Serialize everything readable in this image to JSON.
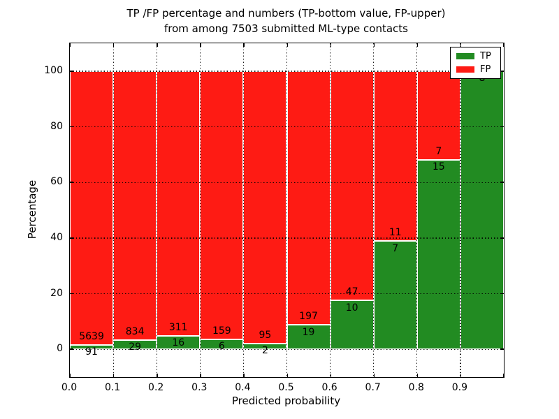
{
  "chart_data": {
    "type": "bar",
    "stacked": true,
    "normalized": "each bin scaled to 100 percent",
    "title_lines": [
      "TP /FP percentage and numbers (TP-bottom value, FP-upper)",
      "from among 7503 submitted ML-type contacts"
    ],
    "xlabel": "Predicted probability",
    "ylabel": "Percentage",
    "total_contacts": 7503,
    "x_tick_labels": [
      "0.0",
      "0.1",
      "0.2",
      "0.3",
      "0.4",
      "0.5",
      "0.6",
      "0.7",
      "0.8",
      "0.9"
    ],
    "bin_edges": [
      0.0,
      0.1,
      0.2,
      0.3,
      0.4,
      0.5,
      0.6,
      0.7,
      0.8,
      0.9,
      1.0
    ],
    "y_ticks": [
      0,
      20,
      40,
      60,
      80,
      100
    ],
    "y_tick_labels": [
      "0",
      "20",
      "40",
      "60",
      "80",
      "100"
    ],
    "ylim": [
      -10,
      110
    ],
    "xlim": [
      0.0,
      1.0
    ],
    "grid": true,
    "grid_style": "dotted",
    "series": [
      {
        "name": "TP",
        "position": "bottom",
        "color": "#228b22",
        "counts": [
          91,
          29,
          16,
          6,
          2,
          19,
          10,
          7,
          15,
          8
        ]
      },
      {
        "name": "FP",
        "position": "top",
        "color": "#fe1b14",
        "counts": [
          5639,
          834,
          311,
          159,
          95,
          197,
          47,
          11,
          7,
          0
        ]
      }
    ],
    "tp_percent_per_bin": [
      1.6,
      3.4,
      4.9,
      3.6,
      2.1,
      8.8,
      17.5,
      38.9,
      68.2,
      100.0
    ],
    "legend": {
      "location": "upper right",
      "entries": [
        {
          "label": "TP",
          "color": "#228b22"
        },
        {
          "label": "FP",
          "color": "#fe1b14"
        }
      ]
    }
  },
  "colors": {
    "tp_green": "#228b22",
    "fp_red": "#fe1b14",
    "grid": "#000000",
    "background": "#ffffff",
    "text": "#000000"
  }
}
